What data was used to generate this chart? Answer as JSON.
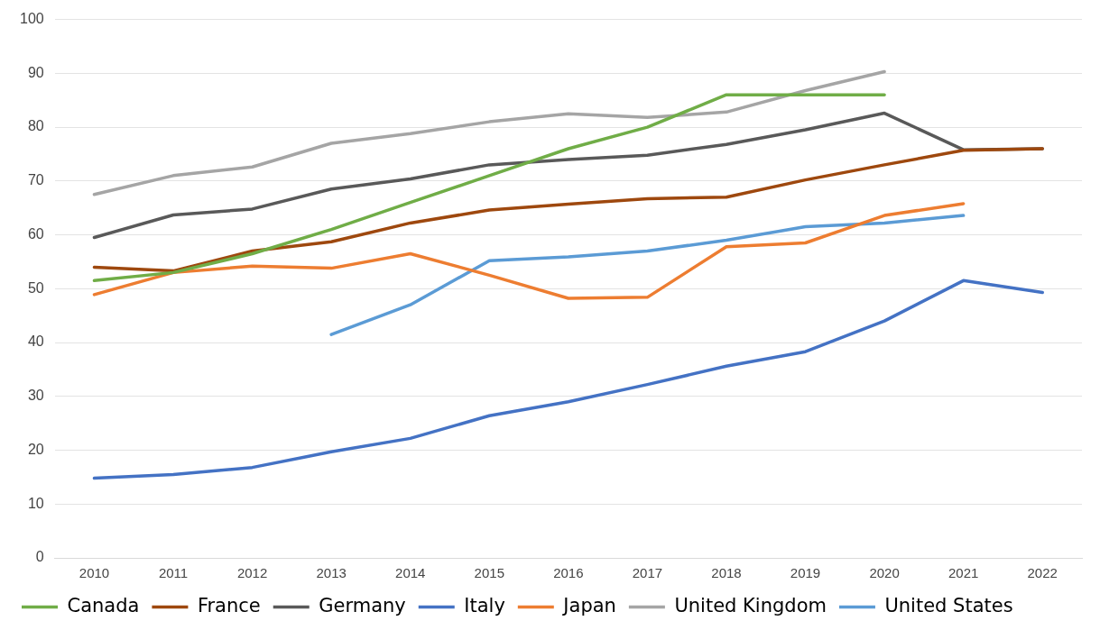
{
  "chart_data": {
    "type": "line",
    "categories": [
      "2010",
      "2011",
      "2012",
      "2013",
      "2014",
      "2015",
      "2016",
      "2017",
      "2018",
      "2019",
      "2020",
      "2021",
      "2022"
    ],
    "ylim": [
      0,
      100
    ],
    "yticks": [
      0,
      10,
      20,
      30,
      40,
      50,
      60,
      70,
      80,
      90,
      100
    ],
    "grid": "y",
    "legend": "bottom",
    "marker": "none",
    "line_style": "solid",
    "series": [
      {
        "name": "Canada",
        "color": "#70ad47",
        "values": [
          51.5,
          53,
          56.5,
          61,
          66,
          71,
          76,
          80,
          86,
          86,
          86,
          null,
          null
        ]
      },
      {
        "name": "France",
        "color": "#9e480e",
        "values": [
          54,
          53.3,
          57,
          58.7,
          62.2,
          64.6,
          65.7,
          66.7,
          67,
          70.2,
          73,
          75.7,
          76
        ]
      },
      {
        "name": "Germany",
        "color": "#595959",
        "values": [
          59.5,
          63.7,
          64.8,
          68.5,
          70.4,
          73,
          74,
          74.8,
          76.8,
          79.5,
          82.6,
          75.8,
          76
        ]
      },
      {
        "name": "Italy",
        "color": "#4472c4",
        "values": [
          14.8,
          15.5,
          16.8,
          19.7,
          22.2,
          26.4,
          29,
          32.2,
          35.6,
          38.3,
          44,
          51.5,
          49.3
        ]
      },
      {
        "name": "Japan",
        "color": "#ed7d31",
        "values": [
          48.9,
          53,
          54.2,
          53.8,
          56.5,
          52.5,
          48.2,
          48.4,
          57.8,
          58.5,
          63.6,
          65.8,
          null
        ]
      },
      {
        "name": "United Kingdom",
        "color": "#a5a5a5",
        "values": [
          67.5,
          71,
          72.6,
          77,
          78.8,
          81,
          82.5,
          81.8,
          82.8,
          86.8,
          90.3,
          null,
          null
        ]
      },
      {
        "name": "United States",
        "color": "#5b9bd5",
        "values": [
          null,
          null,
          null,
          41.5,
          47,
          55.2,
          55.9,
          57,
          59,
          61.5,
          62.2,
          63.6,
          null
        ]
      }
    ]
  }
}
